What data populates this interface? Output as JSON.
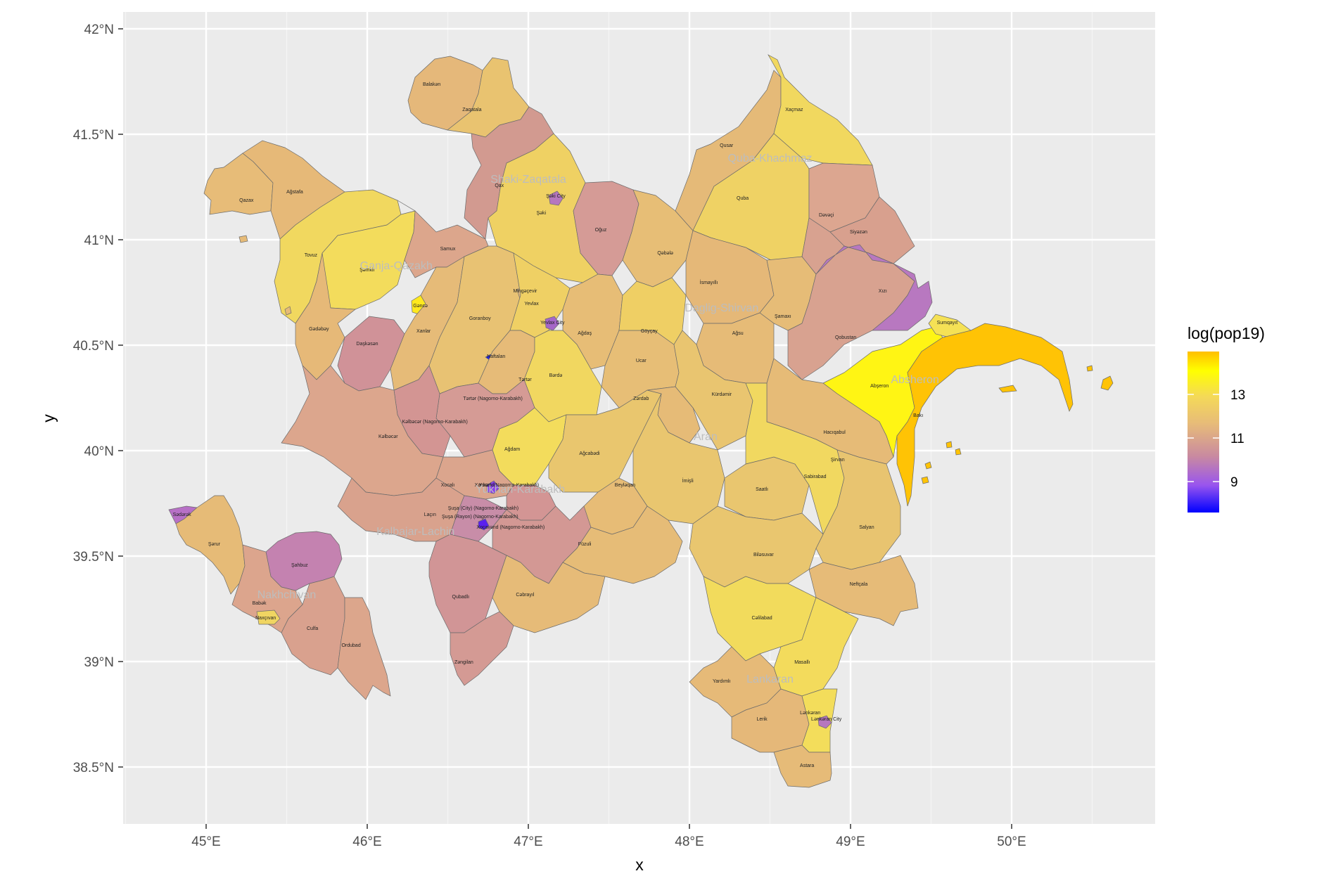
{
  "chart_data": {
    "type": "choropleth",
    "xlabel": "x",
    "ylabel": "y",
    "x_ticks": [
      "45°E",
      "46°E",
      "47°E",
      "48°E",
      "49°E",
      "50°E"
    ],
    "y_ticks": [
      "42°N",
      "41.5°N",
      "41°N",
      "40.5°N",
      "40°N",
      "39.5°N",
      "39°N",
      "38.5°N"
    ],
    "xlim": [
      44.5,
      50.9
    ],
    "ylim": [
      38.2,
      42.1
    ],
    "legend": {
      "title": "log(pop19)",
      "labels": [
        "13",
        "11",
        "9"
      ],
      "position": "right",
      "colors": [
        "#0000ff",
        "#9955ee",
        "#c98aa0",
        "#e7bb79",
        "#f4d958",
        "#ffff00",
        "#ffbf00"
      ]
    },
    "regions": [
      {
        "name": "Shaki-Zaqatala",
        "lon": 47.0,
        "lat": 41.27
      },
      {
        "name": "Quba-Khachmaz",
        "lon": 48.5,
        "lat": 41.37
      },
      {
        "name": "Ganja-Qazakh",
        "lon": 46.18,
        "lat": 40.86
      },
      {
        "name": "Daglig-Shirvan",
        "lon": 48.2,
        "lat": 40.66
      },
      {
        "name": "Absheron",
        "lon": 49.4,
        "lat": 40.32
      },
      {
        "name": "Aran",
        "lon": 48.1,
        "lat": 40.05
      },
      {
        "name": "Yukhari-Karabakh",
        "lon": 46.95,
        "lat": 39.8
      },
      {
        "name": "Kalbajar-Lachin",
        "lon": 46.3,
        "lat": 39.6
      },
      {
        "name": "Nakhchivan",
        "lon": 45.5,
        "lat": 39.3
      },
      {
        "name": "Lankaran",
        "lon": 48.5,
        "lat": 38.9
      }
    ],
    "districts": [
      {
        "name": "Balakən",
        "lon": 46.4,
        "lat": 41.73
      },
      {
        "name": "Zaqatala",
        "lon": 46.65,
        "lat": 41.61
      },
      {
        "name": "Qax",
        "lon": 46.82,
        "lat": 41.25
      },
      {
        "name": "Şəki City",
        "lon": 47.17,
        "lat": 41.2
      },
      {
        "name": "Şəki",
        "lon": 47.08,
        "lat": 41.12
      },
      {
        "name": "Oğuz",
        "lon": 47.45,
        "lat": 41.04
      },
      {
        "name": "Qəbələ",
        "lon": 47.85,
        "lat": 40.93
      },
      {
        "name": "Qusar",
        "lon": 48.23,
        "lat": 41.44
      },
      {
        "name": "Xaçmaz",
        "lon": 48.65,
        "lat": 41.61
      },
      {
        "name": "Quba",
        "lon": 48.33,
        "lat": 41.19
      },
      {
        "name": "Dəvəçi",
        "lon": 48.85,
        "lat": 41.11
      },
      {
        "name": "Siyəzən",
        "lon": 49.05,
        "lat": 41.03
      },
      {
        "name": "Xızı",
        "lon": 49.2,
        "lat": 40.75
      },
      {
        "name": "Qazax",
        "lon": 45.25,
        "lat": 41.18
      },
      {
        "name": "Ağstafa",
        "lon": 45.55,
        "lat": 41.22
      },
      {
        "name": "Tovuz",
        "lon": 45.65,
        "lat": 40.92
      },
      {
        "name": "Şəmkir",
        "lon": 46.0,
        "lat": 40.85
      },
      {
        "name": "Gəncə",
        "lon": 46.33,
        "lat": 40.68
      },
      {
        "name": "Samux",
        "lon": 46.5,
        "lat": 40.95
      },
      {
        "name": "Gədəbəy",
        "lon": 45.7,
        "lat": 40.57
      },
      {
        "name": "Daşkəsən",
        "lon": 46.0,
        "lat": 40.5
      },
      {
        "name": "Xanlar",
        "lon": 46.35,
        "lat": 40.56
      },
      {
        "name": "Goranboy",
        "lon": 46.7,
        "lat": 40.62
      },
      {
        "name": "Mingəçevir",
        "lon": 46.98,
        "lat": 40.75
      },
      {
        "name": "Yevlax",
        "lon": 47.02,
        "lat": 40.69
      },
      {
        "name": "Yevlax City",
        "lon": 47.15,
        "lat": 40.6
      },
      {
        "name": "Ağdaş",
        "lon": 47.35,
        "lat": 40.55
      },
      {
        "name": "Göyçay",
        "lon": 47.75,
        "lat": 40.56
      },
      {
        "name": "İsmayıllı",
        "lon": 48.12,
        "lat": 40.79
      },
      {
        "name": "Şamaxı",
        "lon": 48.58,
        "lat": 40.63
      },
      {
        "name": "Ağsu",
        "lon": 48.3,
        "lat": 40.55
      },
      {
        "name": "Qobustan",
        "lon": 48.97,
        "lat": 40.53
      },
      {
        "name": "Sumqayıt",
        "lon": 49.6,
        "lat": 40.6
      },
      {
        "name": "Abşeron",
        "lon": 49.18,
        "lat": 40.3
      },
      {
        "name": "Bakı",
        "lon": 49.42,
        "lat": 40.16
      },
      {
        "name": "Naftalan",
        "lon": 46.8,
        "lat": 40.44
      },
      {
        "name": "Tərtər",
        "lon": 46.98,
        "lat": 40.33
      },
      {
        "name": "Bərdə",
        "lon": 47.17,
        "lat": 40.35
      },
      {
        "name": "Ucar",
        "lon": 47.7,
        "lat": 40.42
      },
      {
        "name": "Zərdab",
        "lon": 47.7,
        "lat": 40.24
      },
      {
        "name": "Kürdəmir",
        "lon": 48.2,
        "lat": 40.26
      },
      {
        "name": "Tərtər (Nagorno-Karabakh)",
        "lon": 46.78,
        "lat": 40.24
      },
      {
        "name": "Kəlbəcər (Nagorno-Karabakh)",
        "lon": 46.42,
        "lat": 40.13
      },
      {
        "name": "Kəlbəcər",
        "lon": 46.13,
        "lat": 40.06
      },
      {
        "name": "Ağdam",
        "lon": 46.9,
        "lat": 40.0
      },
      {
        "name": "Ağcabədi",
        "lon": 47.38,
        "lat": 39.98
      },
      {
        "name": "Hacıqabul",
        "lon": 48.9,
        "lat": 40.08
      },
      {
        "name": "Şirvan",
        "lon": 48.92,
        "lat": 39.95
      },
      {
        "name": "Sabirabad",
        "lon": 48.78,
        "lat": 39.87
      },
      {
        "name": "İmişli",
        "lon": 47.99,
        "lat": 39.85
      },
      {
        "name": "Saatlı",
        "lon": 48.45,
        "lat": 39.81
      },
      {
        "name": "Beyləqan",
        "lon": 47.6,
        "lat": 39.83
      },
      {
        "name": "Xocalı",
        "lon": 46.5,
        "lat": 39.83
      },
      {
        "name": "Xankəndi",
        "lon": 46.73,
        "lat": 39.83
      },
      {
        "name": "Xocalı (Nagorno-Karabakh)",
        "lon": 46.88,
        "lat": 39.83
      },
      {
        "name": "Laçın",
        "lon": 46.39,
        "lat": 39.69
      },
      {
        "name": "Şuşa (City) (Nagorno-Karabakh)",
        "lon": 46.72,
        "lat": 39.72
      },
      {
        "name": "Şuşa (Rayon) (Nagorno-Karabakh)",
        "lon": 46.7,
        "lat": 39.68
      },
      {
        "name": "Xocavənd (Nagorno-Karabakh)",
        "lon": 46.89,
        "lat": 39.63
      },
      {
        "name": "Füzuli",
        "lon": 47.35,
        "lat": 39.55
      },
      {
        "name": "Salyan",
        "lon": 49.1,
        "lat": 39.63
      },
      {
        "name": "Biləsuvar",
        "lon": 48.46,
        "lat": 39.5
      },
      {
        "name": "Neftçala",
        "lon": 49.05,
        "lat": 39.36
      },
      {
        "name": "Qubadlı",
        "lon": 46.58,
        "lat": 39.3
      },
      {
        "name": "Cəbrayıl",
        "lon": 46.98,
        "lat": 39.31
      },
      {
        "name": "Zəngilan",
        "lon": 46.6,
        "lat": 38.99
      },
      {
        "name": "Cəlilabad",
        "lon": 48.45,
        "lat": 39.2
      },
      {
        "name": "Masallı",
        "lon": 48.7,
        "lat": 38.99
      },
      {
        "name": "Yardımlı",
        "lon": 48.2,
        "lat": 38.9
      },
      {
        "name": "Lerik",
        "lon": 48.45,
        "lat": 38.72
      },
      {
        "name": "Lənkəran",
        "lon": 48.75,
        "lat": 38.75
      },
      {
        "name": "Lənkəran City",
        "lon": 48.85,
        "lat": 38.72
      },
      {
        "name": "Astara",
        "lon": 48.73,
        "lat": 38.5
      },
      {
        "name": "Sədərək",
        "lon": 44.85,
        "lat": 39.69
      },
      {
        "name": "Şərur",
        "lon": 45.05,
        "lat": 39.55
      },
      {
        "name": "Şahbuz",
        "lon": 45.58,
        "lat": 39.45
      },
      {
        "name": "Babək",
        "lon": 45.33,
        "lat": 39.27
      },
      {
        "name": "Naxçıvan",
        "lon": 45.37,
        "lat": 39.2
      },
      {
        "name": "Culfa",
        "lon": 45.66,
        "lat": 39.15
      },
      {
        "name": "Ordubad",
        "lon": 45.9,
        "lat": 39.07
      }
    ]
  }
}
